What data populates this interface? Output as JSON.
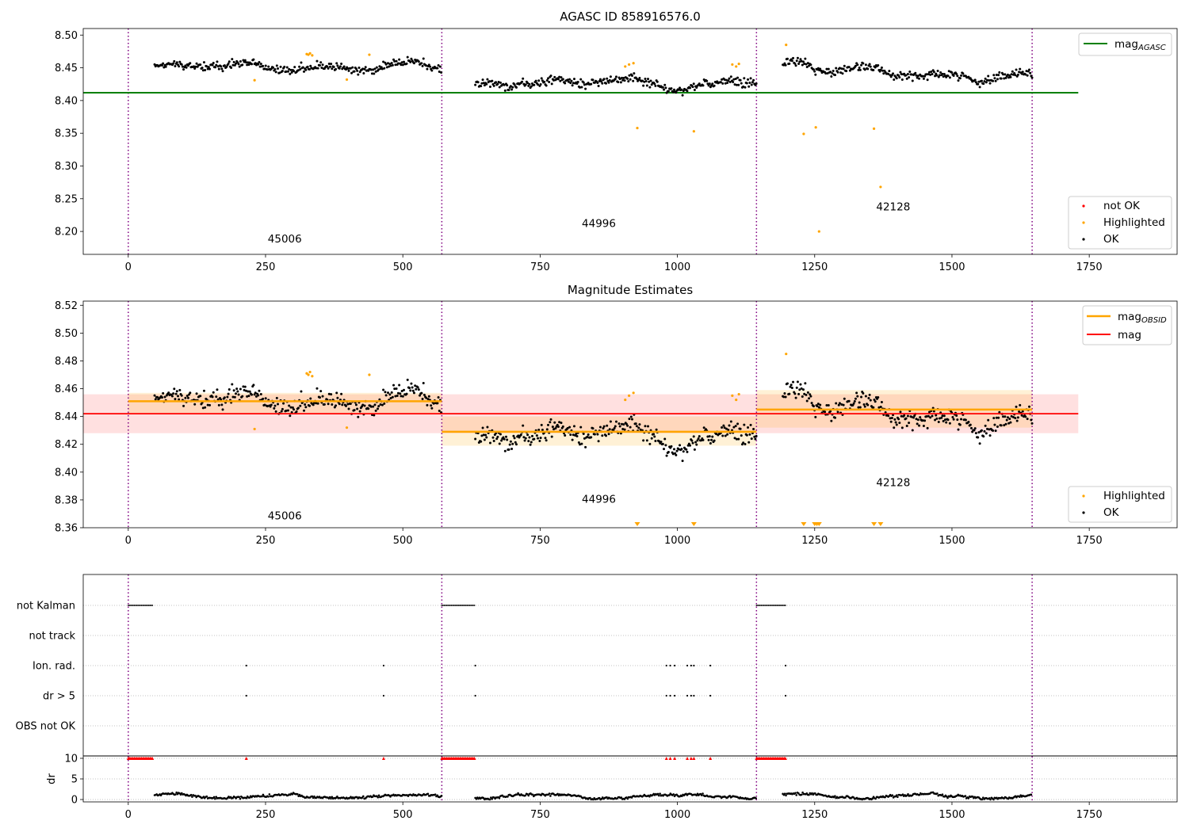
{
  "chart_data": [
    {
      "type": "scatter",
      "title": "AGASC ID 858916576.0",
      "xlim": [
        -82,
        1910
      ],
      "ylim": [
        8.165,
        8.51
      ],
      "xticks": [
        0,
        250,
        500,
        750,
        1000,
        1250,
        1500,
        1750
      ],
      "yticks": [
        8.2,
        8.25,
        8.3,
        8.35,
        8.4,
        8.45,
        8.5
      ],
      "obs_boundaries": [
        0,
        571,
        1144,
        1646
      ],
      "obs_labels": [
        {
          "text": "45006",
          "x": 285,
          "y": 8.183
        },
        {
          "text": "44996",
          "x": 857,
          "y": 8.207
        },
        {
          "text": "42128",
          "x": 1393,
          "y": 8.232
        }
      ],
      "mag_agasc": {
        "value": 8.412,
        "x": [
          -82,
          1730
        ]
      },
      "segments": [
        {
          "x0": 48,
          "x1": 571,
          "level": 8.451,
          "noise": 0.0055,
          "trend": 0
        },
        {
          "x0": 632,
          "x1": 1144,
          "level": 8.427,
          "noise": 0.0055,
          "trend": 0
        },
        {
          "x0": 1192,
          "x1": 1646,
          "level": 8.452,
          "noise": 0.0058,
          "trend": -0.016
        }
      ],
      "highlighted_points": [
        [
          230,
          8.431
        ],
        [
          325,
          8.471
        ],
        [
          328,
          8.47
        ],
        [
          331,
          8.472
        ],
        [
          335,
          8.469
        ],
        [
          398,
          8.432
        ],
        [
          439,
          8.47
        ],
        [
          905,
          8.452
        ],
        [
          912,
          8.455
        ],
        [
          920,
          8.457
        ],
        [
          927,
          8.358
        ],
        [
          1030,
          8.353
        ],
        [
          1100,
          8.455
        ],
        [
          1107,
          8.452
        ],
        [
          1112,
          8.456
        ],
        [
          1198,
          8.485
        ],
        [
          1230,
          8.349
        ],
        [
          1252,
          8.359
        ],
        [
          1258,
          8.2
        ],
        [
          1358,
          8.357
        ],
        [
          1370,
          8.268
        ]
      ],
      "legend_upper": [
        {
          "label": "mag",
          "sub": "AGASC",
          "color": "#008000"
        }
      ],
      "legend_lower": [
        {
          "label": "not OK",
          "color": "#ff0000"
        },
        {
          "label": "Highlighted",
          "color": "#ffa500"
        },
        {
          "label": "OK",
          "color": "#000000"
        }
      ]
    },
    {
      "type": "scatter",
      "title": "Magnitude Estimates",
      "xlim": [
        -82,
        1910
      ],
      "ylim": [
        8.36,
        8.523
      ],
      "xticks": [
        0,
        250,
        500,
        750,
        1000,
        1250,
        1500,
        1750
      ],
      "yticks": [
        8.36,
        8.38,
        8.4,
        8.42,
        8.44,
        8.46,
        8.48,
        8.5,
        8.52
      ],
      "obs_boundaries": [
        0,
        571,
        1144,
        1646
      ],
      "obs_labels": [
        {
          "text": "45006",
          "x": 285,
          "y": 8.366
        },
        {
          "text": "44996",
          "x": 857,
          "y": 8.378
        },
        {
          "text": "42128",
          "x": 1393,
          "y": 8.39
        }
      ],
      "mag_overall": {
        "value": 8.442,
        "band": [
          8.428,
          8.456
        ],
        "x": [
          -82,
          1730
        ]
      },
      "mag_obsid": [
        {
          "x0": 0,
          "x1": 571,
          "value": 8.451,
          "band": [
            8.442,
            8.457
          ]
        },
        {
          "x0": 571,
          "x1": 1144,
          "value": 8.429,
          "band": [
            8.419,
            8.44
          ]
        },
        {
          "x0": 1144,
          "x1": 1646,
          "value": 8.445,
          "band": [
            8.432,
            8.459
          ]
        }
      ],
      "clipped_markers": [
        927,
        1030,
        1230,
        1250,
        1254,
        1258,
        1358,
        1370
      ],
      "legend_upper": [
        {
          "label": "mag",
          "sub": "OBSID",
          "color": "#ffa500"
        },
        {
          "label": "mag",
          "sub": "",
          "color": "#ff0000"
        }
      ],
      "legend_lower": [
        {
          "label": "Highlighted",
          "color": "#ffa500"
        },
        {
          "label": "OK",
          "color": "#000000"
        }
      ]
    },
    {
      "type": "scatter",
      "title": "",
      "xlim": [
        -82,
        1910
      ],
      "xticks": [
        0,
        250,
        500,
        750,
        1000,
        1250,
        1500,
        1750
      ],
      "flag_rows": [
        "not Kalman",
        "not track",
        "Ion. rad.",
        "dr > 5",
        "OBS not OK"
      ],
      "flag_events": {
        "not Kalman": [
          [
            0,
            45
          ],
          [
            571,
            632
          ],
          [
            1144,
            1197
          ]
        ],
        "Ion. rad.": [
          215,
          465,
          632,
          980,
          987,
          995,
          1018,
          1025,
          1030,
          1060,
          1197
        ],
        "dr > 5": [
          215,
          465,
          632,
          980,
          987,
          995,
          1018,
          1025,
          1030,
          1060,
          1197
        ]
      },
      "dr": {
        "ylabel": "dr",
        "yticks": [
          0,
          5,
          10
        ],
        "ylim": [
          -0.5,
          11
        ],
        "cap": 10,
        "capped_spans": [
          [
            0,
            45
          ],
          [
            571,
            632
          ],
          [
            1144,
            1197
          ]
        ],
        "capped_points": [
          215,
          465,
          980,
          987,
          995,
          1018,
          1025,
          1030,
          1060
        ]
      }
    }
  ]
}
